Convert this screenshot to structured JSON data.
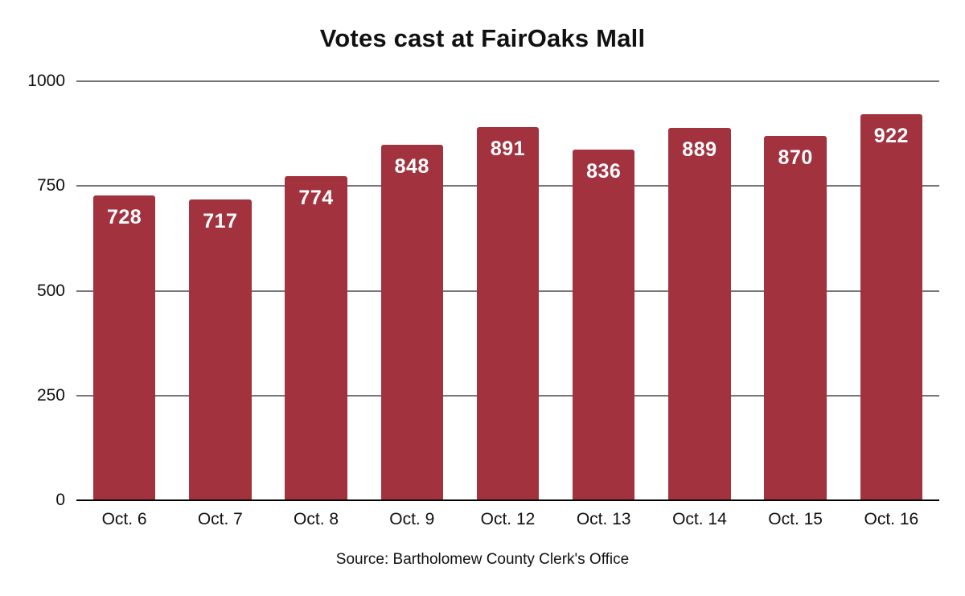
{
  "title": "Votes cast at FairOaks Mall",
  "source_note": "Source: Bartholomew County Clerk's Office",
  "colors": {
    "bar": "#A3323F",
    "bar_label": "#FFFFFF",
    "gridline": "#757575",
    "axis_line": "#000000",
    "text": "#111111",
    "background": "#FFFFFF"
  },
  "chart_data": {
    "type": "bar",
    "title": "Votes cast at FairOaks Mall",
    "categories": [
      "Oct. 6",
      "Oct. 7",
      "Oct. 8",
      "Oct. 9",
      "Oct. 12",
      "Oct. 13",
      "Oct. 14",
      "Oct. 15",
      "Oct. 16"
    ],
    "values": [
      728,
      717,
      774,
      848,
      891,
      836,
      889,
      870,
      922
    ],
    "bar_labels_shown": true,
    "xlabel": "",
    "ylabel": "",
    "ylim": [
      0,
      1000
    ],
    "yticks": [
      0,
      250,
      500,
      750,
      1000
    ],
    "grid": true,
    "legend": false,
    "source_note": "Source: Bartholomew County Clerk's Office"
  }
}
